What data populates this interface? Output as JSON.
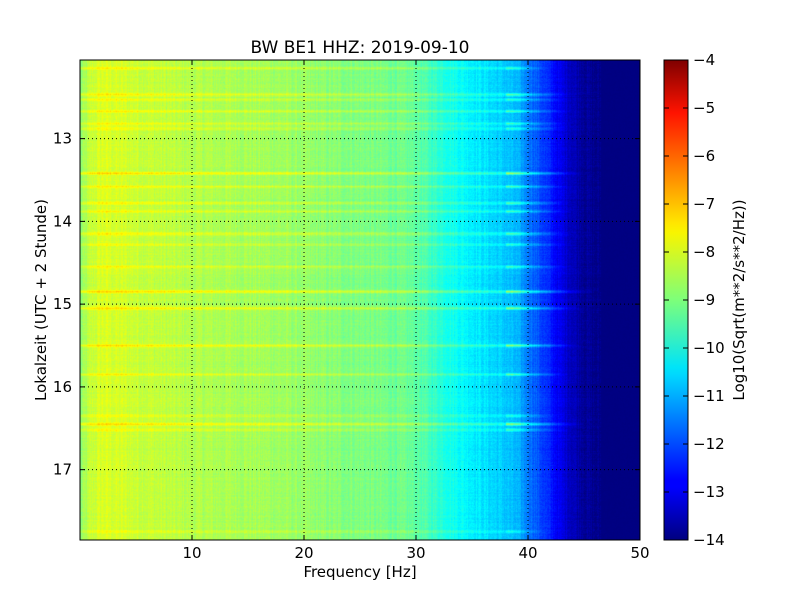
{
  "chart_data": {
    "type": "heatmap",
    "title": "BW BE1 HHZ: 2019-09-10",
    "xlabel": "Frequency [Hz]",
    "ylabel": "Lokalzeit (UTC + 2 Stunde)",
    "xlim": [
      0,
      50
    ],
    "ylim": [
      12.05,
      17.85
    ],
    "y_inverted": true,
    "x_ticks": [
      10,
      20,
      30,
      40,
      50
    ],
    "y_ticks": [
      13,
      14,
      15,
      16,
      17
    ],
    "grid": true,
    "colormap": "jet",
    "colorbar": {
      "label": "Log10(Sqrt(m**2/s**2/Hz))",
      "range": [
        -14,
        -4
      ],
      "ticks": [
        -4,
        -5,
        -6,
        -7,
        -8,
        -9,
        -10,
        -11,
        -12,
        -13,
        -14
      ]
    },
    "spectrum_profile": {
      "frequency_hz": [
        0,
        1,
        2,
        4,
        6,
        8,
        10,
        12,
        15,
        18,
        20,
        22,
        25,
        28,
        30,
        32,
        34,
        36,
        38,
        39,
        40,
        41,
        42,
        43,
        44,
        45,
        46,
        50
      ],
      "log10_amplitude": [
        -8.9,
        -8.3,
        -8.1,
        -8.2,
        -8.3,
        -8.4,
        -8.5,
        -8.55,
        -8.6,
        -8.7,
        -8.8,
        -8.9,
        -9.0,
        -9.15,
        -9.3,
        -9.8,
        -10.2,
        -10.5,
        -10.8,
        -11.0,
        -11.5,
        -12.0,
        -12.5,
        -13.0,
        -13.4,
        -13.7,
        -13.9,
        -14.0
      ]
    },
    "band_lines": [
      {
        "time": 12.15,
        "level": 0.6,
        "max_freq_hz": 42
      },
      {
        "time": 12.47,
        "level": 0.7,
        "max_freq_hz": 44
      },
      {
        "time": 12.53,
        "level": 0.5,
        "max_freq_hz": 44
      },
      {
        "time": 12.67,
        "level": 0.6,
        "max_freq_hz": 44
      },
      {
        "time": 12.82,
        "level": 0.6,
        "max_freq_hz": 44
      },
      {
        "time": 12.88,
        "level": 0.5,
        "max_freq_hz": 44
      },
      {
        "time": 13.42,
        "level": 1.0,
        "max_freq_hz": 45
      },
      {
        "time": 13.58,
        "level": 0.6,
        "max_freq_hz": 44
      },
      {
        "time": 13.78,
        "level": 0.7,
        "max_freq_hz": 44
      },
      {
        "time": 13.88,
        "level": 0.6,
        "max_freq_hz": 44
      },
      {
        "time": 14.15,
        "level": 0.7,
        "max_freq_hz": 44
      },
      {
        "time": 14.28,
        "level": 0.5,
        "max_freq_hz": 44
      },
      {
        "time": 14.55,
        "level": 0.6,
        "max_freq_hz": 44
      },
      {
        "time": 14.85,
        "level": 1.0,
        "max_freq_hz": 46
      },
      {
        "time": 15.05,
        "level": 0.9,
        "max_freq_hz": 45
      },
      {
        "time": 15.5,
        "level": 0.9,
        "max_freq_hz": 45
      },
      {
        "time": 15.85,
        "level": 0.7,
        "max_freq_hz": 44
      },
      {
        "time": 16.35,
        "level": 0.5,
        "max_freq_hz": 43
      },
      {
        "time": 16.45,
        "level": 1.0,
        "max_freq_hz": 45
      },
      {
        "time": 16.52,
        "level": 0.6,
        "max_freq_hz": 44
      },
      {
        "time": 17.75,
        "level": 0.4,
        "max_freq_hz": 42
      }
    ]
  }
}
